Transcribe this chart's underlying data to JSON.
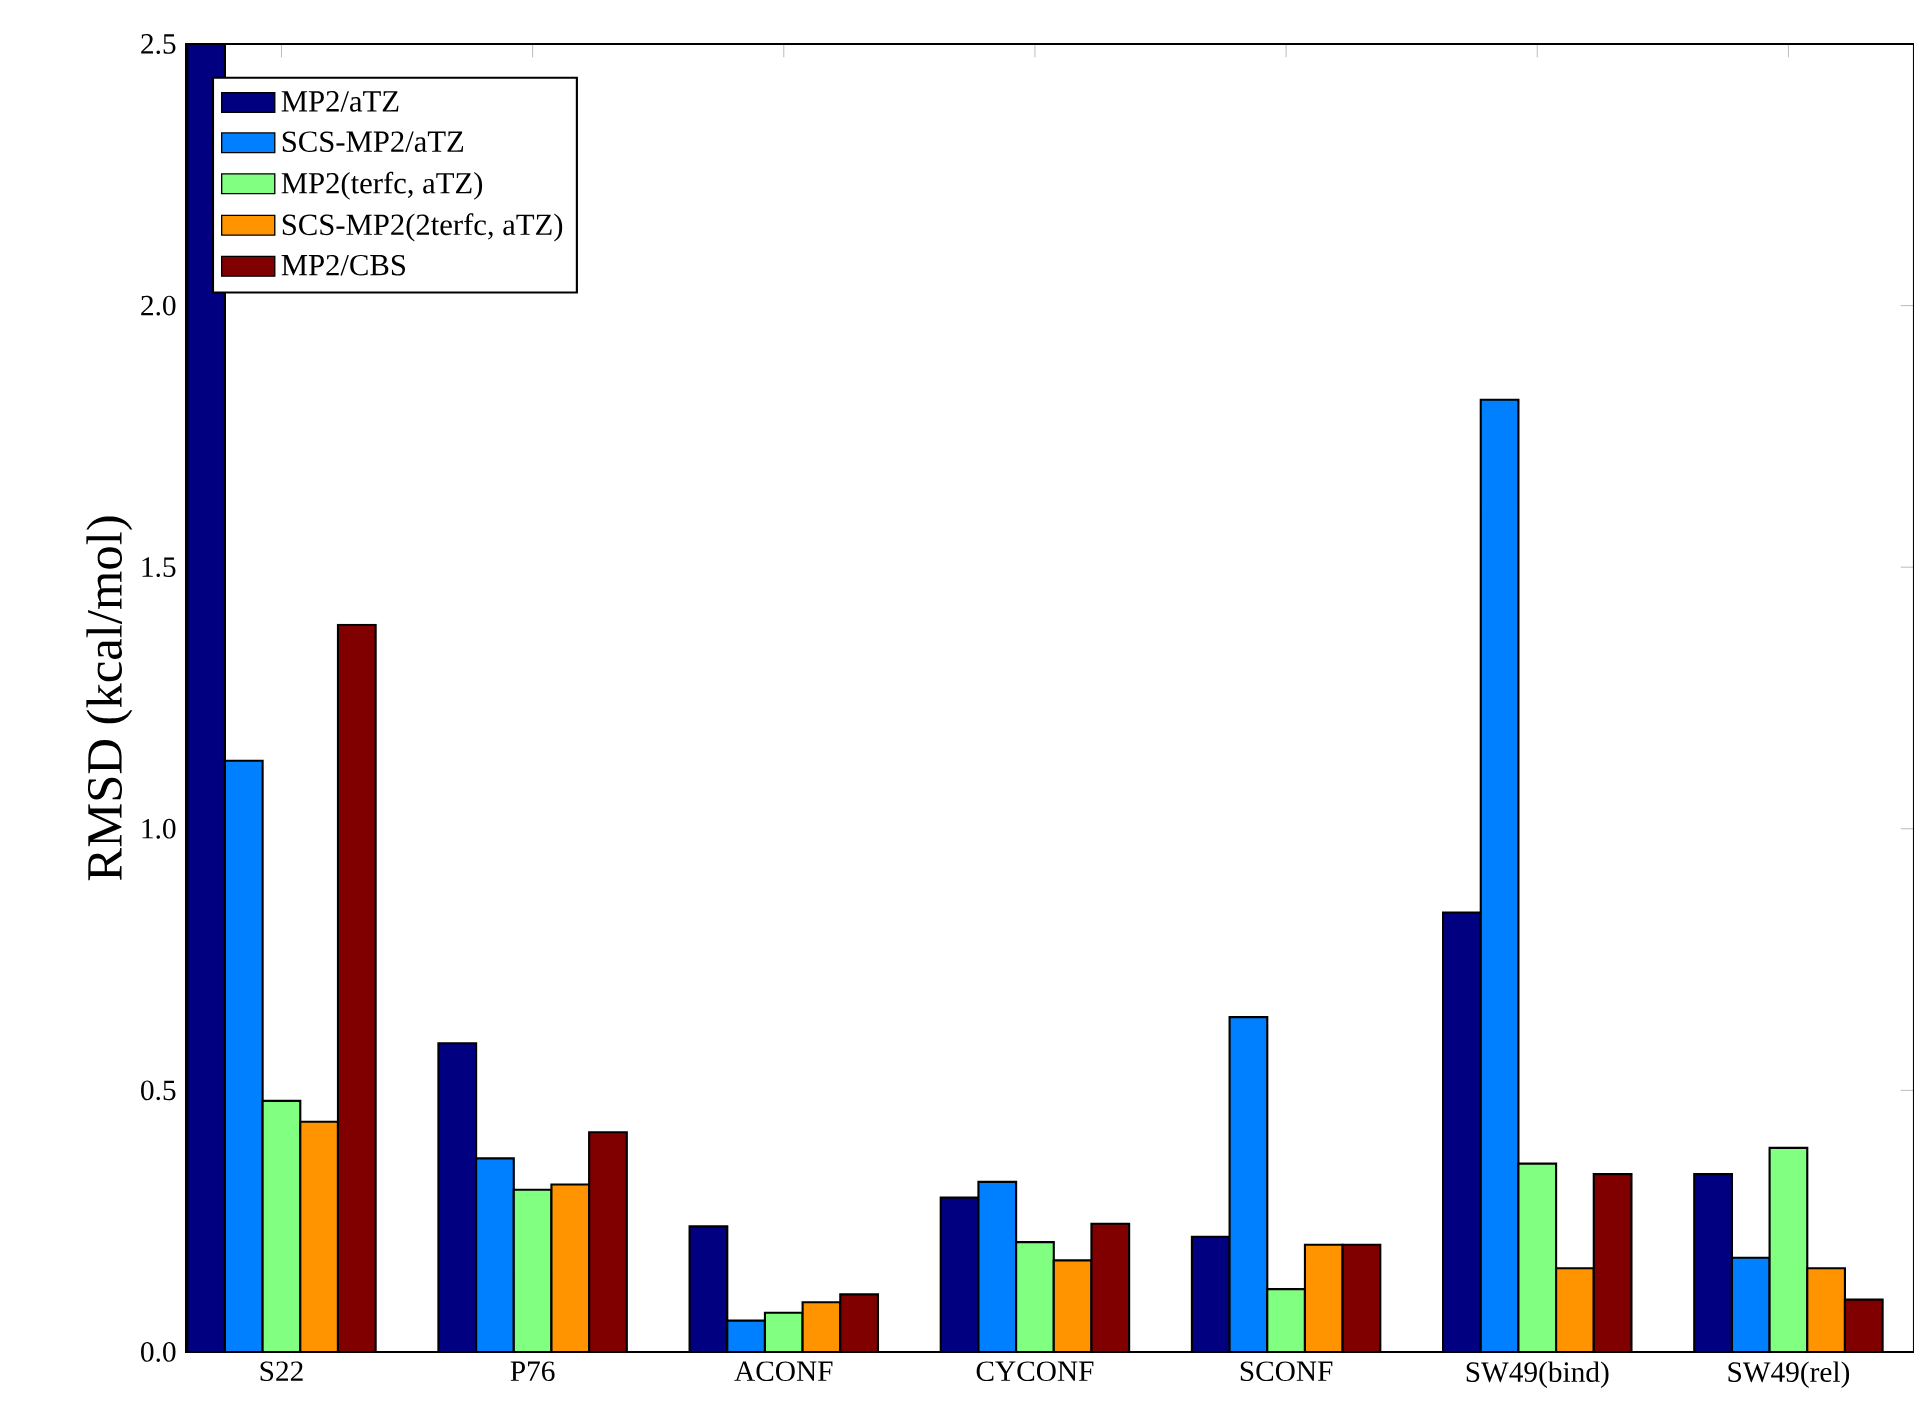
{
  "chart_data": {
    "type": "bar",
    "ylabel": "RMSD (kcal/mol)",
    "categories": [
      "S22",
      "P76",
      "ACONF",
      "CYCONF",
      "SCONF",
      "SW49(bind)",
      "SW49(rel)"
    ],
    "series": [
      {
        "name": "MP2/aTZ",
        "color": "#000080",
        "values": [
          2.5,
          0.59,
          0.24,
          0.295,
          0.22,
          0.84,
          0.34
        ]
      },
      {
        "name": "SCS-MP2/aTZ",
        "color": "#0080ff",
        "values": [
          1.13,
          0.37,
          0.06,
          0.325,
          0.64,
          1.82,
          0.18
        ]
      },
      {
        "name": "MP2(terfc, aTZ)",
        "color": "#80ff80",
        "values": [
          0.48,
          0.31,
          0.075,
          0.21,
          0.12,
          0.36,
          0.39
        ]
      },
      {
        "name": "SCS-MP2(2terfc, aTZ)",
        "color": "#ff9400",
        "values": [
          0.44,
          0.32,
          0.095,
          0.175,
          0.205,
          0.16,
          0.16
        ]
      },
      {
        "name": "MP2/CBS",
        "color": "#800000",
        "values": [
          1.39,
          0.42,
          0.11,
          0.245,
          0.205,
          0.34,
          0.1
        ]
      }
    ],
    "ylim": [
      0,
      2.5
    ],
    "yticks": [
      {
        "value": 0,
        "label": "0.0"
      },
      {
        "value": 0.5,
        "label": "0.5"
      },
      {
        "value": 1.0,
        "label": "1.0"
      },
      {
        "value": 1.5,
        "label": "1.5"
      },
      {
        "value": 2.0,
        "label": "2.0"
      },
      {
        "value": 2.5,
        "label": "2.5"
      }
    ],
    "legend": "top left"
  }
}
